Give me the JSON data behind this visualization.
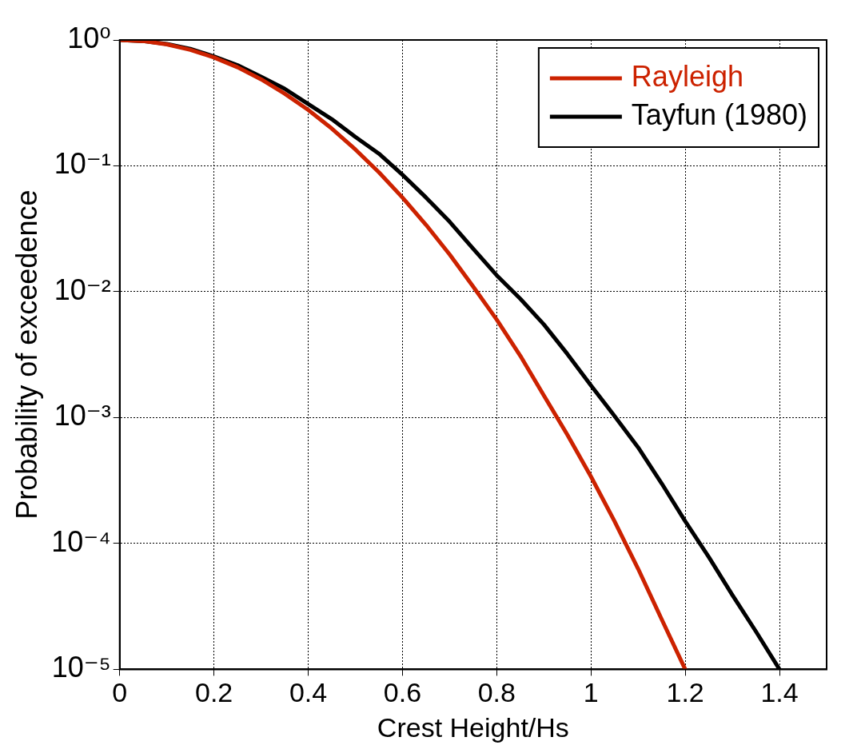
{
  "chart_data": {
    "type": "line",
    "xlabel": "Crest Height/Hs",
    "ylabel": "Probability of exceedence",
    "log": "y",
    "xlim": [
      0,
      1.5
    ],
    "xticks": [
      0,
      0.2,
      0.4,
      0.6,
      0.8,
      1,
      1.2,
      1.4
    ],
    "ylim": [
      1e-05,
      1
    ],
    "yticks": [
      {
        "value": 1,
        "label": "10⁰"
      },
      {
        "value": 0.1,
        "label": "10⁻¹"
      },
      {
        "value": 0.01,
        "label": "10⁻²"
      },
      {
        "value": 0.001,
        "label": "10⁻³"
      },
      {
        "value": 0.0001,
        "label": "10⁻⁴"
      },
      {
        "value": 1e-05,
        "label": "10⁻⁵"
      }
    ],
    "grid": true,
    "legend": "top right",
    "marker": "none",
    "line_style": "solid",
    "x": [
      0,
      0.05,
      0.1,
      0.15,
      0.2,
      0.25,
      0.3,
      0.35,
      0.4,
      0.45,
      0.5,
      0.55,
      0.6,
      0.65,
      0.7,
      0.75,
      0.8,
      0.85,
      0.9,
      0.95,
      1,
      1.05,
      1.1,
      1.15,
      1.2
    ],
    "series": [
      {
        "name": "Rayleigh",
        "color": "#cc2200",
        "values": [
          1,
          0.98,
          0.923,
          0.835,
          0.726,
          0.607,
          0.487,
          0.375,
          0.278,
          0.198,
          0.135,
          0.089,
          0.056,
          0.034,
          0.0198,
          0.011,
          0.006,
          0.0031,
          0.0015,
          0.00073,
          0.00034,
          0.00015,
          6.3e-05,
          2.5e-05,
          1e-05
        ]
      },
      {
        "name": "Tayfun (1980)",
        "color": "#000000",
        "x": [
          0,
          0.05,
          0.1,
          0.15,
          0.2,
          0.25,
          0.3,
          0.35,
          0.4,
          0.45,
          0.5,
          0.55,
          0.6,
          0.65,
          0.7,
          0.75,
          0.8,
          0.85,
          0.9,
          0.95,
          1,
          1.05,
          1.1,
          1.15,
          1.2,
          1.25,
          1.3,
          1.35,
          1.4
        ],
        "values": [
          1,
          0.98,
          0.93,
          0.85,
          0.74,
          0.63,
          0.51,
          0.41,
          0.31,
          0.235,
          0.17,
          0.125,
          0.085,
          0.056,
          0.036,
          0.022,
          0.0135,
          0.0088,
          0.0055,
          0.0032,
          0.0018,
          0.00103,
          0.00058,
          0.0003,
          0.00015,
          7.8e-05,
          3.9e-05,
          2e-05,
          1e-05
        ]
      }
    ]
  }
}
